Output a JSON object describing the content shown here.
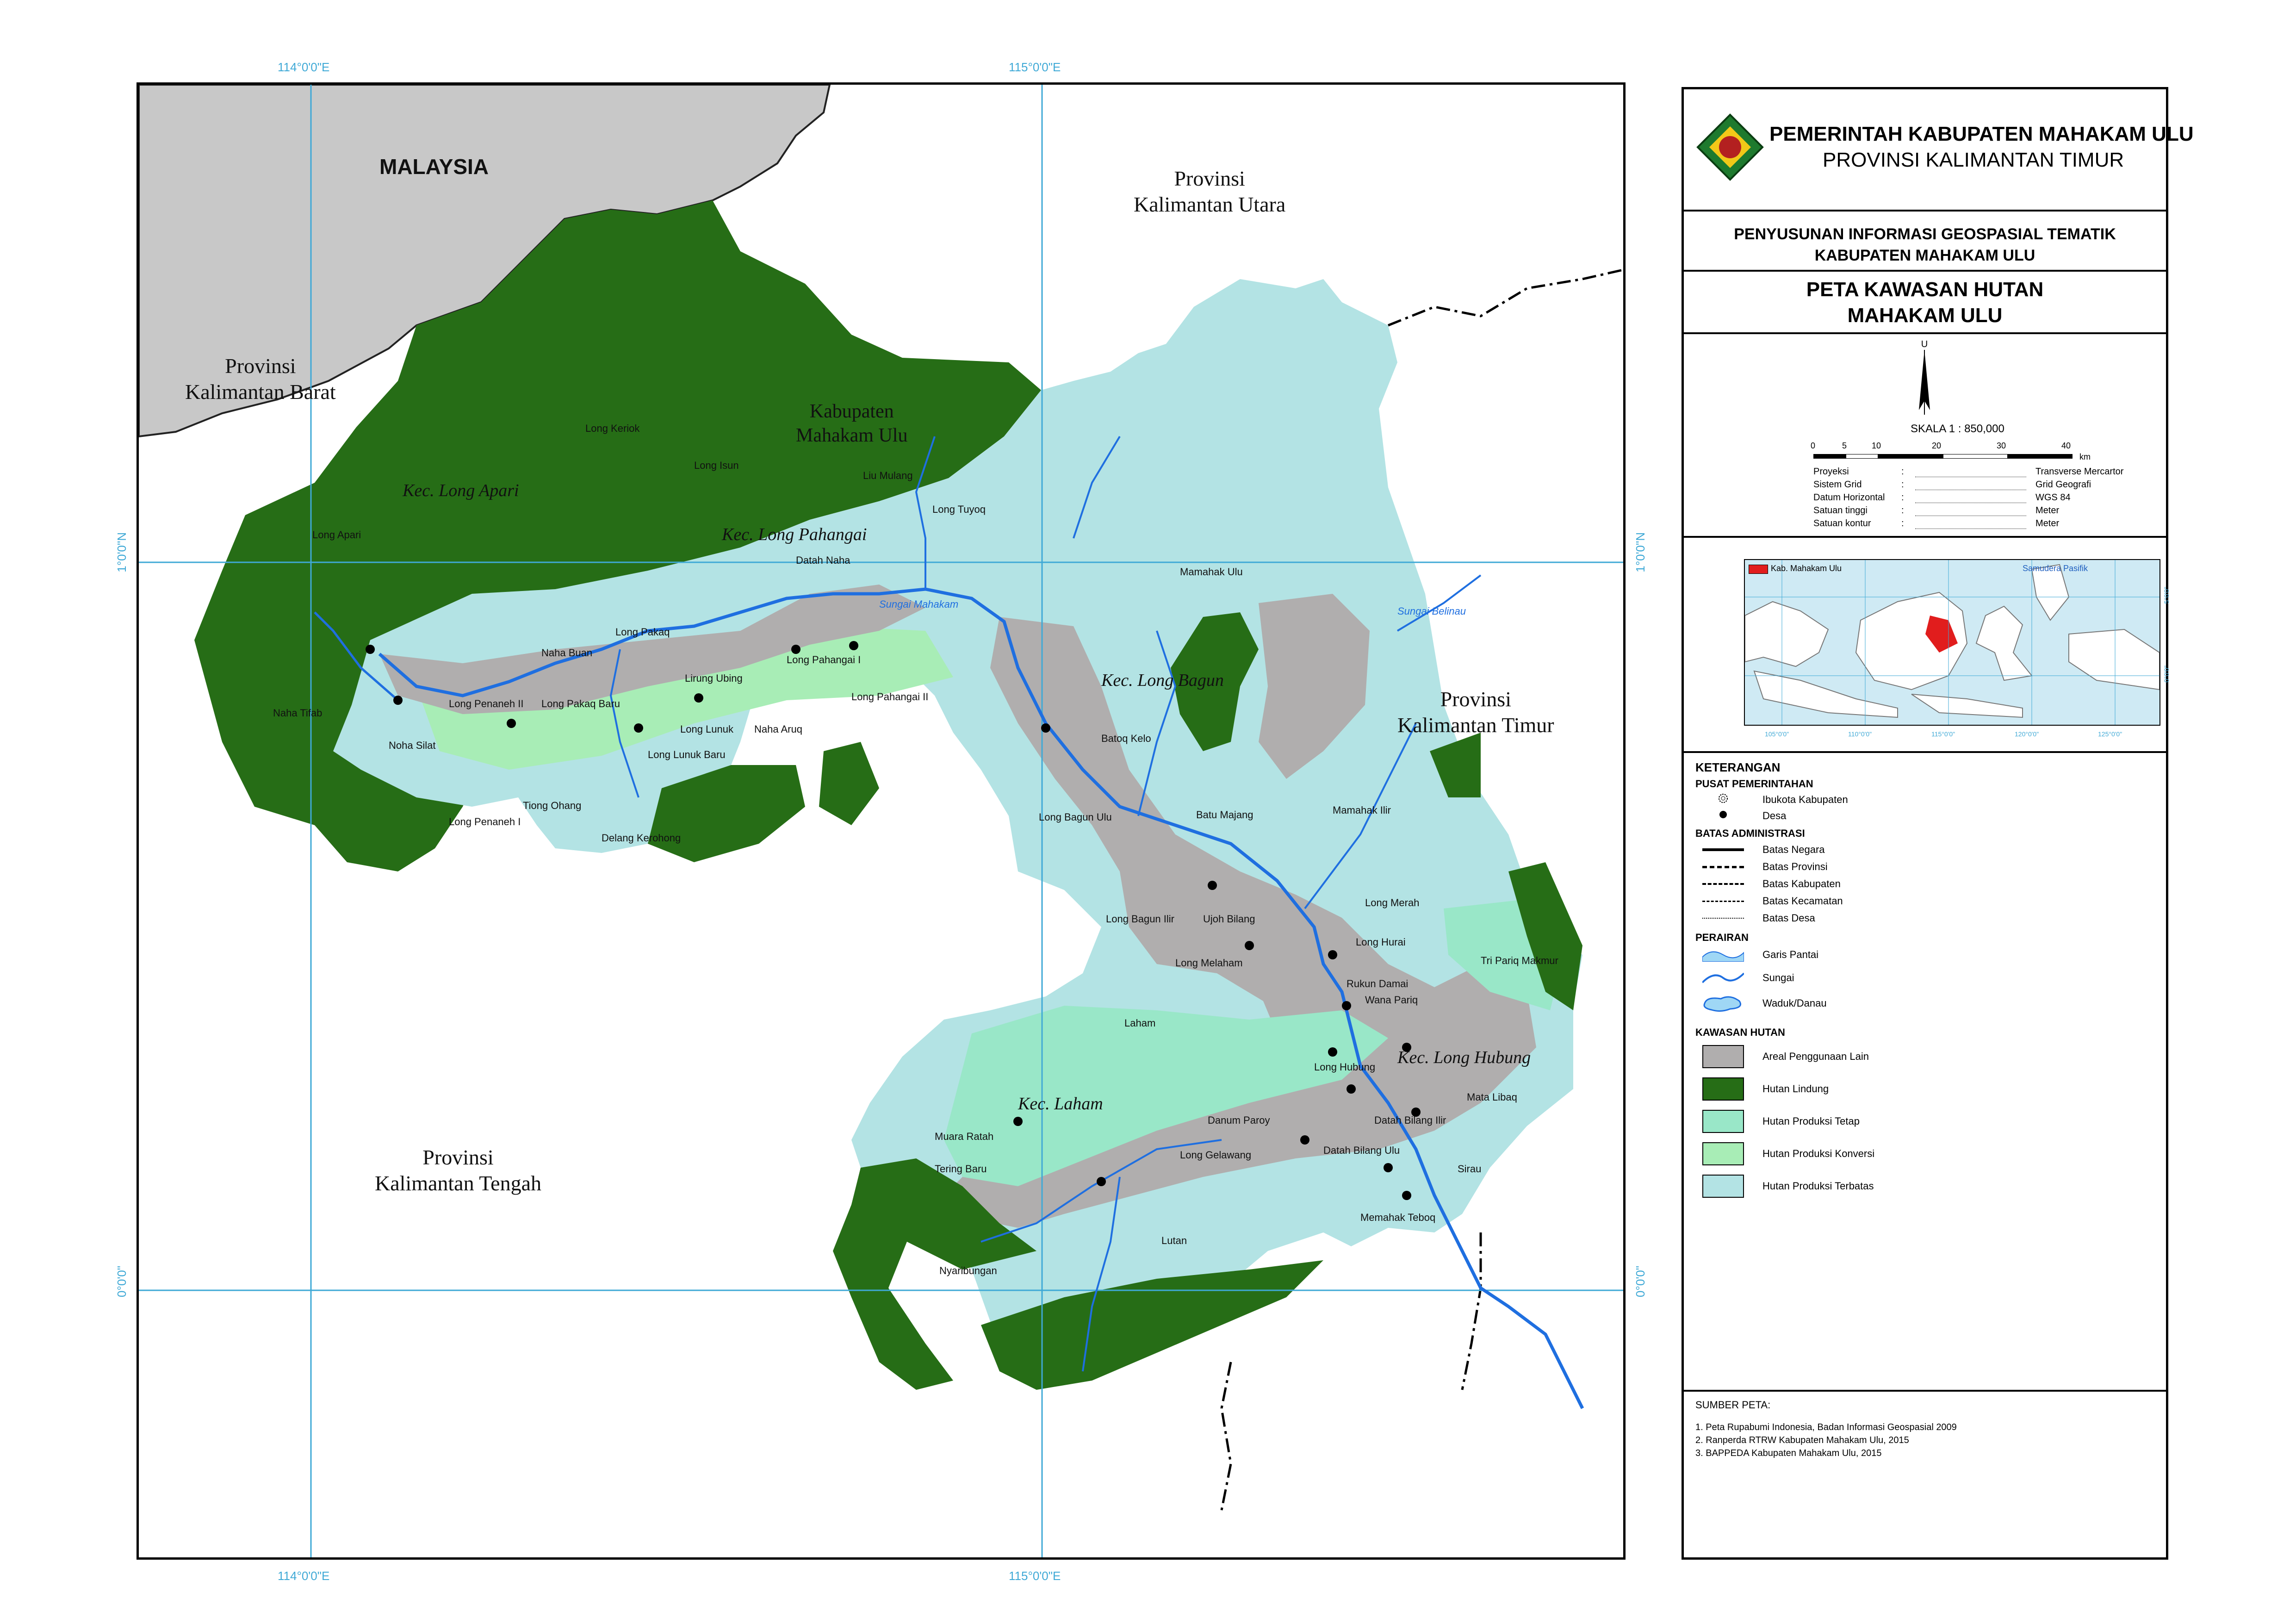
{
  "header": {
    "line1": "PEMERINTAH KABUPATEN MAHAKAM ULU",
    "line2": "PROVINSI KALIMANTAN TIMUR",
    "project_line1": "PENYUSUNAN INFORMASI GEOSPASIAL TEMATIK",
    "project_line2": "KABUPATEN MAHAKAM ULU",
    "title_line1": "PETA KAWASAN HUTAN",
    "title_line2": "MAHAKAM ULU"
  },
  "north_arrow": {
    "label": "U"
  },
  "scale": {
    "label": "SKALA 1 : 850,000",
    "ticks": [
      "0",
      "5",
      "10",
      "20",
      "30",
      "40"
    ],
    "unit": "km"
  },
  "map_meta": [
    {
      "key": "Proyeksi",
      "sep": ":",
      "value": "Transverse Mercartor"
    },
    {
      "key": "Sistem Grid",
      "sep": ":",
      "value": "Grid Geografi"
    },
    {
      "key": "Datum Horizontal",
      "sep": ":",
      "value": "WGS 84"
    },
    {
      "key": "Satuan tinggi",
      "sep": ":",
      "value": "Meter"
    },
    {
      "key": "Satuan kontur",
      "sep": ":",
      "value": "Meter"
    }
  ],
  "inset": {
    "legend_label": "Kab. Mahakam Ulu",
    "sea_label": "Samudera Pasifik",
    "lon_ticks": [
      "105°0'0\"",
      "110°0'0\"",
      "115°0'0\"",
      "120°0'0\"",
      "125°0'0\""
    ],
    "lat_ticks": [
      "5°0'0\"",
      "0°0'0\""
    ]
  },
  "legend": {
    "heading": "KETERANGAN",
    "pusat_heading": "PUSAT PEMERINTAHAN",
    "pusat_items": [
      "Ibukota Kabupaten",
      "Desa"
    ],
    "batas_heading": "BATAS ADMINISTRASI",
    "batas_items": [
      "Batas Negara",
      "Batas Provinsi",
      "Batas Kabupaten",
      "Batas Kecamatan",
      "Batas Desa"
    ],
    "perairan_heading": "PERAIRAN",
    "perairan_items": [
      "Garis Pantai",
      "Sungai",
      "Waduk/Danau"
    ],
    "kawasan_heading": "KAWASAN HUTAN",
    "kawasan_items": [
      {
        "label": "Areal Penggunaan Lain",
        "color": "#b0aeae"
      },
      {
        "label": "Hutan Lindung",
        "color": "#266d16"
      },
      {
        "label": "Hutan Produksi Tetap",
        "color": "#99e7c8"
      },
      {
        "label": "Hutan Produksi Konversi",
        "color": "#a8edb6"
      },
      {
        "label": "Hutan Produksi Terbatas",
        "color": "#b3e3e4"
      }
    ]
  },
  "sources": {
    "heading": "SUMBER PETA:",
    "items": [
      "1. Peta Rupabumi Indonesia, Badan Informasi Geospasial 2009",
      "2. Ranperda RTRW Kabupaten Mahakam Ulu, 2015",
      "3. BAPPEDA Kabupaten Mahakam Ulu, 2015"
    ]
  },
  "map": {
    "coords": {
      "lon1": "114°0'0\"E",
      "lon2": "115°0'0\"E",
      "lat1": "1°0'0\"N",
      "lat2": "0°0'0\""
    },
    "regions": {
      "malaysia": "MALAYSIA",
      "kalbar": [
        "Provinsi",
        "Kalimantan Barat"
      ],
      "kalut": [
        "Provinsi",
        "Kalimantan Utara"
      ],
      "kaltim": [
        "Provinsi",
        "Kalimantan Timur"
      ],
      "kalteng": [
        "Provinsi",
        "Kalimantan Tengah"
      ],
      "kabupaten": [
        "Kabupaten",
        "Mahakam Ulu"
      ]
    },
    "kecamatan": [
      "Kec. Long Apari",
      "Kec. Long Pahangai",
      "Kec. Long Bagun",
      "Kec. Long Hubung",
      "Kec. Laham"
    ],
    "places": [
      "Long Keriok",
      "Long Isun",
      "Liu Mulang",
      "Long Tuyoq",
      "Datah Naha",
      "Long Apari",
      "Mamahak Ulu",
      "Naha Buan",
      "Long Pakaq",
      "Long Pahangai I",
      "Lirung Ubing",
      "Long Pahangai II",
      "Long Penaneh II",
      "Long Pakaq Baru",
      "Long Lunuk",
      "Naha Aruq",
      "Long Lunuk Baru",
      "Naha Tifab",
      "Noha Silat",
      "Tiong Ohang",
      "Long Penaneh I",
      "Delang Kerohong",
      "Batoq Kelo",
      "Long Bagun Ulu",
      "Batu Majang",
      "Mamahak Ilir",
      "Long Bagun Ilir",
      "Ujoh Bilang",
      "Long Melaham",
      "Long Merah",
      "Long Hurai",
      "Tri Pariq Makmur",
      "Rukun Damai",
      "Wana Pariq",
      "Laham",
      "Long Hubung",
      "Mata Libaq",
      "Muara Ratah",
      "Danum Paroy",
      "Datah Bilang Ilir",
      "Datah Bilang Ulu",
      "Long Gelawang",
      "Sirau",
      "Memahak Teboq",
      "Lutan",
      "Nyaribungan",
      "Tering Baru",
      "Sungai Mahakam",
      "Sungai Belinau"
    ]
  }
}
